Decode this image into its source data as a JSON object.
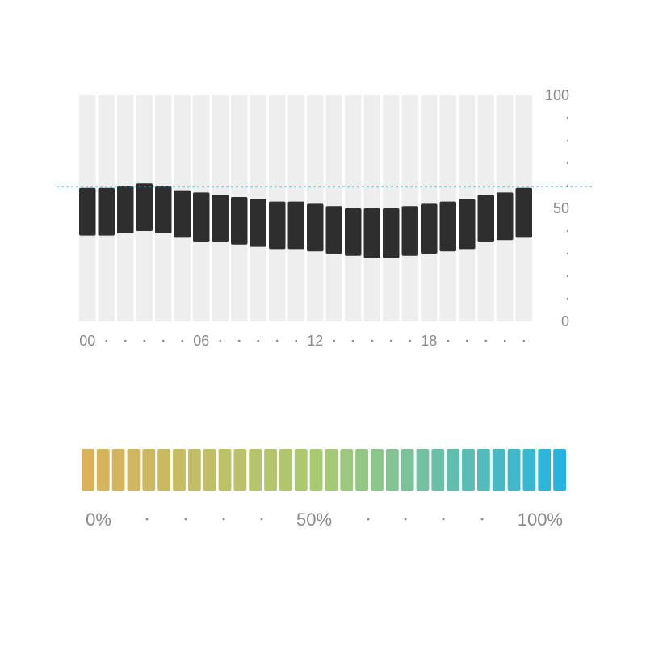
{
  "chart_data": [
    {
      "type": "bar",
      "subtype": "floating-range",
      "x": [
        "00",
        "01",
        "02",
        "03",
        "04",
        "05",
        "06",
        "07",
        "08",
        "09",
        "10",
        "11",
        "12",
        "13",
        "14",
        "15",
        "16",
        "17",
        "18",
        "19",
        "20",
        "21",
        "22",
        "23"
      ],
      "x_tick_labels": [
        "00",
        "06",
        "12",
        "18"
      ],
      "series": [
        {
          "low": [
            38,
            38,
            39,
            40,
            39,
            37,
            35,
            35,
            34,
            33,
            32,
            32,
            31,
            30,
            29,
            28,
            28,
            29,
            30,
            31,
            32,
            35,
            36,
            37
          ],
          "high": [
            59,
            59,
            60,
            61,
            60,
            58,
            57,
            56,
            55,
            54,
            53,
            53,
            52,
            51,
            50,
            50,
            50,
            51,
            52,
            53,
            54,
            56,
            57,
            59
          ]
        }
      ],
      "background_max": 100,
      "reference_line": 59.5,
      "y_tick_labels": [
        "100",
        "50",
        "0"
      ],
      "ylim": [
        0,
        100
      ],
      "y_axis_position": "right",
      "grid": false,
      "colors": {
        "bar": "#2e2e2e",
        "background_bar": "#eeeeee",
        "reference_line": "#2aa3d6",
        "label": "#8a8a8a"
      }
    },
    {
      "type": "bar",
      "subtype": "color-scale",
      "segments": 32,
      "tick_labels": [
        "0%",
        "50%",
        "100%"
      ],
      "colors": {
        "start": "#d9b25a",
        "mid": "#a8cb72",
        "end": "#27b3e0"
      }
    }
  ]
}
